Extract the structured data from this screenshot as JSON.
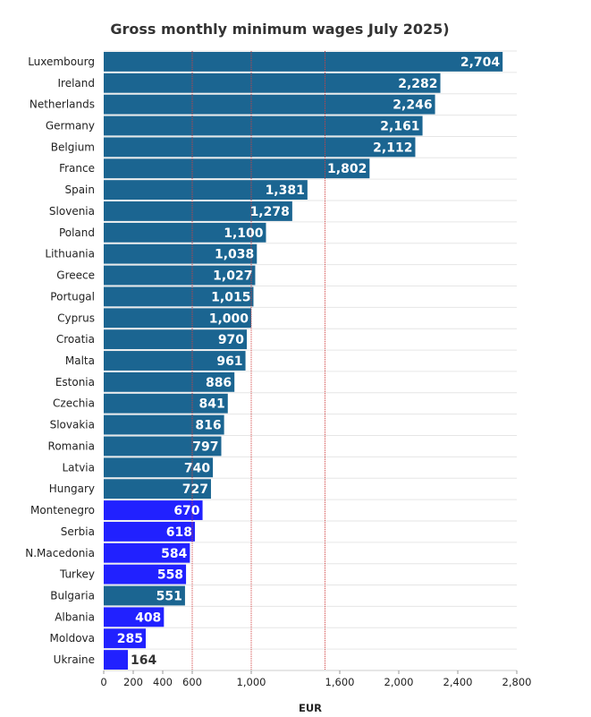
{
  "chart_data": {
    "type": "bar",
    "orientation": "horizontal",
    "title": "Gross monthly minimum wages July 2025)",
    "xlabel": "EUR",
    "ylabel": "",
    "xlim": [
      0,
      2800
    ],
    "x_ticks": [
      0,
      200,
      400,
      600,
      1000,
      1600,
      2000,
      2400,
      2800
    ],
    "x_tick_labels": [
      "0",
      "200",
      "400",
      "600",
      "1,000",
      "1,600",
      "2,000",
      "2,400",
      "2,800"
    ],
    "reference_lines": [
      600,
      1000,
      1500
    ],
    "grid": true,
    "categories": [
      "Luxembourg",
      "Ireland",
      "Netherlands",
      "Germany",
      "Belgium",
      "France",
      "Spain",
      "Slovenia",
      "Poland",
      "Lithuania",
      "Greece",
      "Portugal",
      "Cyprus",
      "Croatia",
      "Malta",
      "Estonia",
      "Czechia",
      "Slovakia",
      "Romania",
      "Latvia",
      "Hungary",
      "Montenegro",
      "Serbia",
      "N.Macedonia",
      "Turkey",
      "Bulgaria",
      "Albania",
      "Moldova",
      "Ukraine"
    ],
    "values": [
      2704,
      2282,
      2246,
      2161,
      2112,
      1802,
      1381,
      1278,
      1100,
      1038,
      1027,
      1015,
      1000,
      970,
      961,
      886,
      841,
      816,
      797,
      740,
      727,
      670,
      618,
      584,
      558,
      551,
      408,
      285,
      164
    ],
    "value_labels": [
      "2,704",
      "2,282",
      "2,246",
      "2,161",
      "2,112",
      "1,802",
      "1,381",
      "1,278",
      "1,100",
      "1,038",
      "1,027",
      "1,015",
      "1,000",
      "970",
      "961",
      "886",
      "841",
      "816",
      "797",
      "740",
      "727",
      "670",
      "618",
      "584",
      "558",
      "551",
      "408",
      "285",
      "164"
    ],
    "bar_groups": [
      "eu",
      "eu",
      "eu",
      "eu",
      "eu",
      "eu",
      "eu",
      "eu",
      "eu",
      "eu",
      "eu",
      "eu",
      "eu",
      "eu",
      "eu",
      "eu",
      "eu",
      "eu",
      "eu",
      "eu",
      "eu",
      "non-eu",
      "non-eu",
      "non-eu",
      "non-eu",
      "eu",
      "non-eu",
      "non-eu",
      "non-eu"
    ],
    "colors": {
      "eu": "#1b6591",
      "non-eu": "#2121ff",
      "reference_line": "#d04040",
      "grid": "#e6e6e6",
      "label_inside": "#ffffff",
      "label_outside": "#333333"
    }
  }
}
